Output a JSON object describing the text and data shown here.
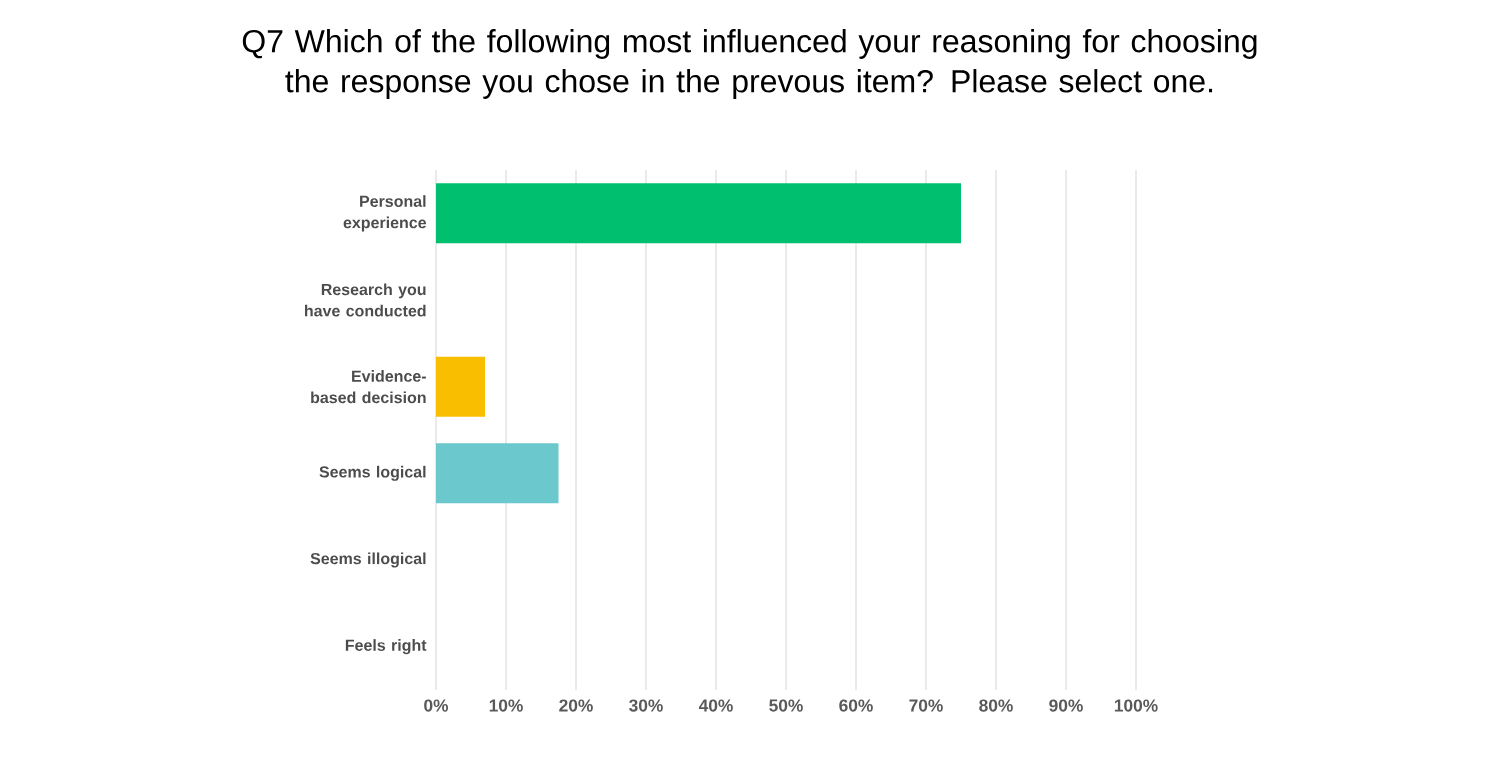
{
  "chart_data": {
    "type": "bar",
    "orientation": "horizontal",
    "title": "Q7 Which of the following most influenced your reasoning for choosing the response you chose in the prevous item? Please select one.",
    "categories": [
      "Personal experience",
      "Research you have conducted",
      "Evidence-based decision",
      "Seems logical",
      "Seems illogical",
      "Feels right"
    ],
    "values": [
      75,
      0,
      7,
      17.5,
      0,
      0
    ],
    "colors": [
      "#00bf6f",
      "#00bf6f",
      "#f9be00",
      "#6bc8cd",
      "#6bc8cd",
      "#6bc8cd"
    ],
    "xlim": [
      0,
      100
    ],
    "xticks": [
      {
        "value": 0,
        "label": "0%"
      },
      {
        "value": 10,
        "label": "10%"
      },
      {
        "value": 20,
        "label": "20%"
      },
      {
        "value": 30,
        "label": "30%"
      },
      {
        "value": 40,
        "label": "40%"
      },
      {
        "value": 50,
        "label": "50%"
      },
      {
        "value": 60,
        "label": "60%"
      },
      {
        "value": 70,
        "label": "70%"
      },
      {
        "value": 80,
        "label": "80%"
      },
      {
        "value": 90,
        "label": "90%"
      },
      {
        "value": 100,
        "label": "100%"
      }
    ],
    "grid": "x"
  }
}
